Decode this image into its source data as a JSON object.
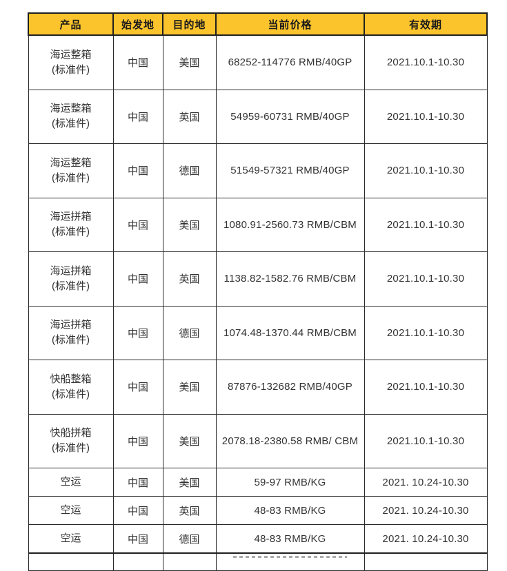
{
  "colors": {
    "header_bg": "#FBC32C",
    "border": "#1f1f1f",
    "body_text": "#333333",
    "page_bg": "#ffffff"
  },
  "table": {
    "columns": [
      "产品",
      "始发地",
      "目的地",
      "当前价格",
      "有效期"
    ],
    "column_names": [
      "col-header-product",
      "col-header-origin",
      "col-header-destination",
      "col-header-price",
      "col-header-validity"
    ],
    "rows": [
      {
        "product": "海运整箱\n(标准件)",
        "origin": "中国",
        "destination": "美国",
        "price": "68252-114776 RMB/40GP",
        "validity": "2021.10.1-10.30",
        "size": "tall"
      },
      {
        "product": "海运整箱\n(标准件)",
        "origin": "中国",
        "destination": "英国",
        "price": "54959-60731 RMB/40GP",
        "validity": "2021.10.1-10.30",
        "size": "tall"
      },
      {
        "product": "海运整箱\n(标准件)",
        "origin": "中国",
        "destination": "德国",
        "price": "51549-57321 RMB/40GP",
        "validity": "2021.10.1-10.30",
        "size": "tall"
      },
      {
        "product": "海运拼箱\n(标准件)",
        "origin": "中国",
        "destination": "美国",
        "price": "1080.91-2560.73 RMB/CBM",
        "validity": "2021.10.1-10.30",
        "size": "tall"
      },
      {
        "product": "海运拼箱\n(标准件)",
        "origin": "中国",
        "destination": "英国",
        "price": "1138.82-1582.76 RMB/CBM",
        "validity": "2021.10.1-10.30",
        "size": "tall"
      },
      {
        "product": "海运拼箱\n(标准件)",
        "origin": "中国",
        "destination": "德国",
        "price": "1074.48-1370.44 RMB/CBM",
        "validity": "2021.10.1-10.30",
        "size": "tall"
      },
      {
        "product": "快船整箱\n(标准件)",
        "origin": "中国",
        "destination": "美国",
        "price": "87876-132682 RMB/40GP",
        "validity": "2021.10.1-10.30",
        "size": "tall"
      },
      {
        "product": "快船拼箱\n(标准件)",
        "origin": "中国",
        "destination": "美国",
        "price": "2078.18-2380.58 RMB/ CBM",
        "validity": "2021.10.1-10.30",
        "size": "tall"
      },
      {
        "product": "空运",
        "origin": "中国",
        "destination": "美国",
        "price": "59-97 RMB/KG",
        "validity": "2021. 10.24-10.30",
        "size": "short"
      },
      {
        "product": "空运",
        "origin": "中国",
        "destination": "英国",
        "price": "48-83 RMB/KG",
        "validity": "2021. 10.24-10.30",
        "size": "short"
      },
      {
        "product": "空运",
        "origin": "中国",
        "destination": "德国",
        "price": "48-83 RMB/KG",
        "validity": "2021. 10.24-10.30",
        "size": "short"
      }
    ]
  }
}
